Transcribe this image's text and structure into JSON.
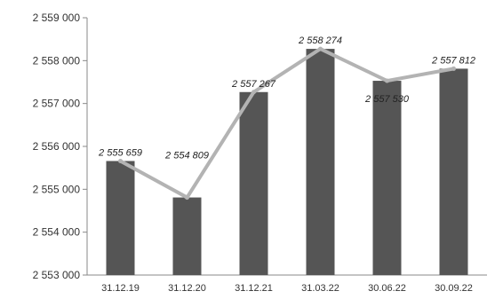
{
  "chart_data": {
    "type": "bar",
    "title": "",
    "xlabel": "",
    "ylabel": "",
    "categories": [
      "31.12.19",
      "31.12.20",
      "31.12.21",
      "31.03.22",
      "30.06.22",
      "30.09.22"
    ],
    "series": [
      {
        "type": "bar",
        "values": [
          2555659,
          2554809,
          2557267,
          2558274,
          2557530,
          2557812
        ]
      },
      {
        "type": "line",
        "values": [
          2555659,
          2554809,
          2557267,
          2558274,
          2557530,
          2557812
        ]
      }
    ],
    "data_labels": [
      "2 555 659",
      "2 554 809",
      "2 557 267",
      "2 558 274",
      "2 557 530",
      "2 557 812"
    ],
    "ylim": [
      2553000,
      2559000
    ],
    "yticks": [
      2553000,
      2554000,
      2555000,
      2556000,
      2557000,
      2558000,
      2559000
    ],
    "ytick_labels": [
      "2 553 000",
      "2 554 000",
      "2 555 000",
      "2 556 000",
      "2 557 000",
      "2 558 000",
      "2 559 000"
    ],
    "grid": false,
    "colors": {
      "bar": "#555555",
      "line": "#b3b3b3",
      "axis": "#888888"
    }
  }
}
